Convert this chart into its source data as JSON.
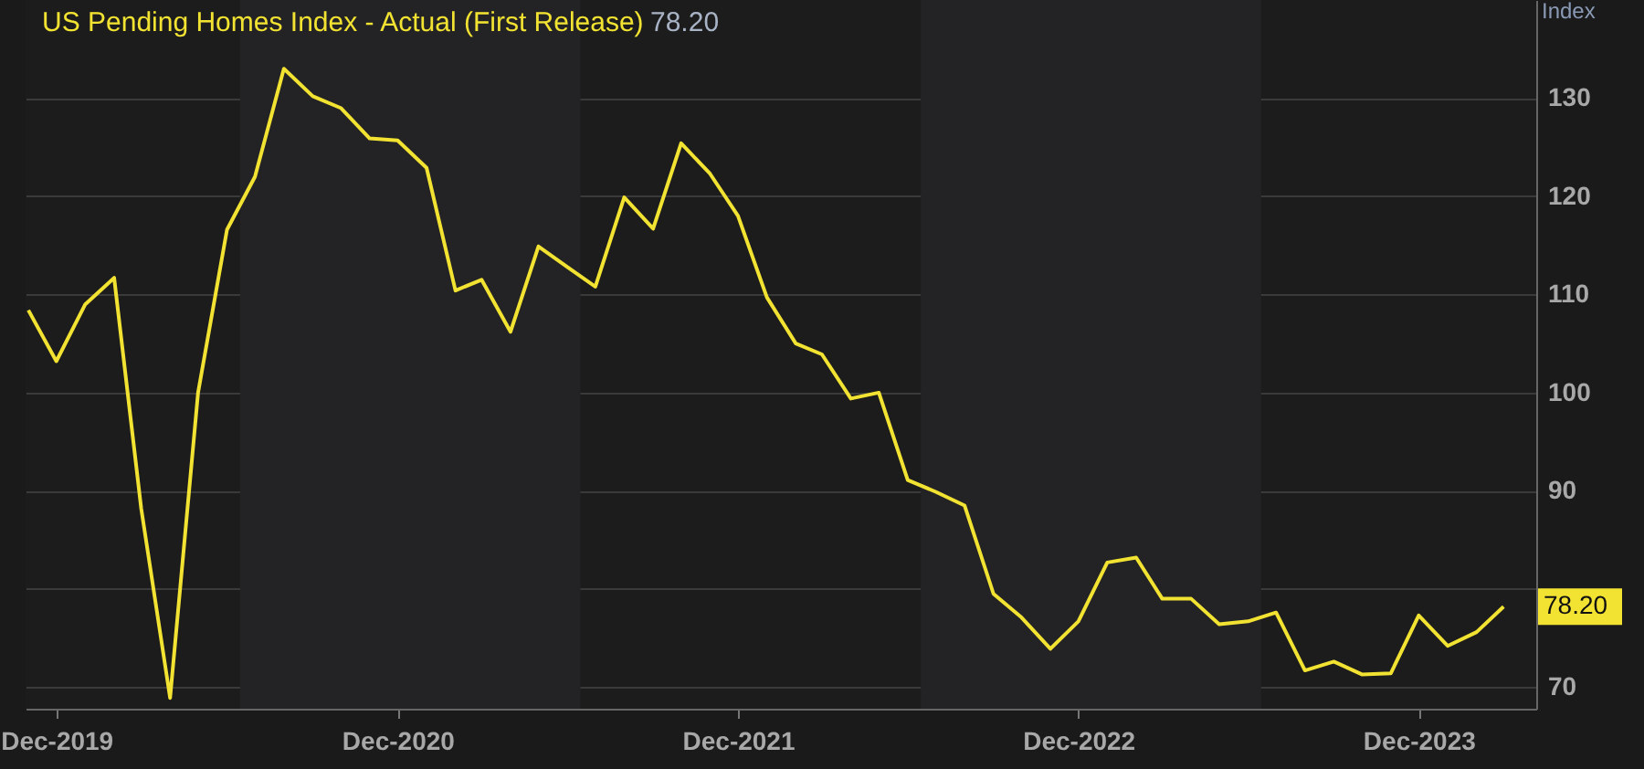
{
  "chart_data": {
    "type": "line",
    "ylabel": "Index",
    "annotations": [
      "78.20"
    ],
    "x": [
      "2019-11",
      "2019-12",
      "2020-01",
      "2020-02",
      "2020-03",
      "2020-04",
      "2020-05",
      "2020-06",
      "2020-07",
      "2020-08",
      "2020-09",
      "2020-10",
      "2020-11",
      "2020-12",
      "2021-01",
      "2021-02",
      "2021-03",
      "2021-04",
      "2021-05",
      "2021-06",
      "2021-07",
      "2021-08",
      "2021-09",
      "2021-10",
      "2021-11",
      "2021-12",
      "2022-01",
      "2022-02",
      "2022-03",
      "2022-04",
      "2022-05",
      "2022-06",
      "2022-07",
      "2022-08",
      "2022-09",
      "2022-10",
      "2022-11",
      "2022-12",
      "2023-01",
      "2023-02",
      "2023-03",
      "2023-04",
      "2023-05",
      "2023-06",
      "2023-07",
      "2023-08",
      "2023-09",
      "2023-10",
      "2023-11",
      "2023-12",
      "2024-01",
      "2024-02",
      "2024-03"
    ],
    "series": [
      {
        "name": "US Pending Homes Index - Actual (First Release)",
        "color": "#f2e232",
        "values": [
          108.4,
          103.2,
          109.0,
          111.7,
          88.2,
          68.9,
          100.0,
          116.6,
          122.0,
          133.0,
          130.2,
          129.0,
          125.9,
          125.7,
          122.9,
          110.4,
          111.5,
          106.2,
          114.9,
          112.8,
          110.8,
          119.9,
          116.7,
          125.4,
          122.3,
          118.0,
          109.7,
          105.0,
          103.9,
          99.4,
          100.0,
          91.1,
          89.9,
          88.5,
          79.5,
          77.1,
          73.9,
          76.7,
          82.7,
          83.2,
          79.0,
          79.0,
          76.4,
          76.7,
          77.6,
          71.7,
          72.6,
          71.3,
          71.4,
          77.3,
          74.2,
          75.6,
          78.2
        ],
        "value_labels": [
          null,
          null,
          null,
          null,
          null,
          null,
          null,
          null,
          null,
          null,
          null,
          null,
          null,
          null,
          null,
          null,
          null,
          null,
          null,
          null,
          null,
          null,
          null,
          null,
          null,
          null,
          null,
          null,
          null,
          null,
          null,
          null,
          null,
          null,
          null,
          null,
          null,
          null,
          null,
          null,
          null,
          null,
          null,
          null,
          null,
          null,
          null,
          null,
          null,
          null,
          null,
          null,
          "78.20"
        ]
      }
    ],
    "xlim": [
      "2019-10-29",
      "2024-04-05"
    ],
    "xticks": [
      {
        "value": "2019-12",
        "label": "Dec-2019"
      },
      {
        "value": "2020-12",
        "label": "Dec-2020"
      },
      {
        "value": "2021-12",
        "label": "Dec-2021"
      },
      {
        "value": "2022-12",
        "label": "Dec-2022"
      },
      {
        "value": "2023-12",
        "label": "Dec-2023"
      }
    ],
    "ylim": [
      67.8,
      140
    ],
    "yticks": [
      70,
      {
        "value": 80,
        "label": null
      },
      90,
      100,
      110,
      120,
      130
    ],
    "bands": [
      {
        "axis": "x",
        "from": "2020-06-15",
        "to": "2021-06-15",
        "color": "#232325"
      },
      {
        "axis": "x",
        "from": "2022-06-15",
        "to": "2023-06-15",
        "color": "#232325"
      }
    ],
    "grid": "y",
    "legend": "top left",
    "line_style": "solid",
    "marker": "none"
  }
}
